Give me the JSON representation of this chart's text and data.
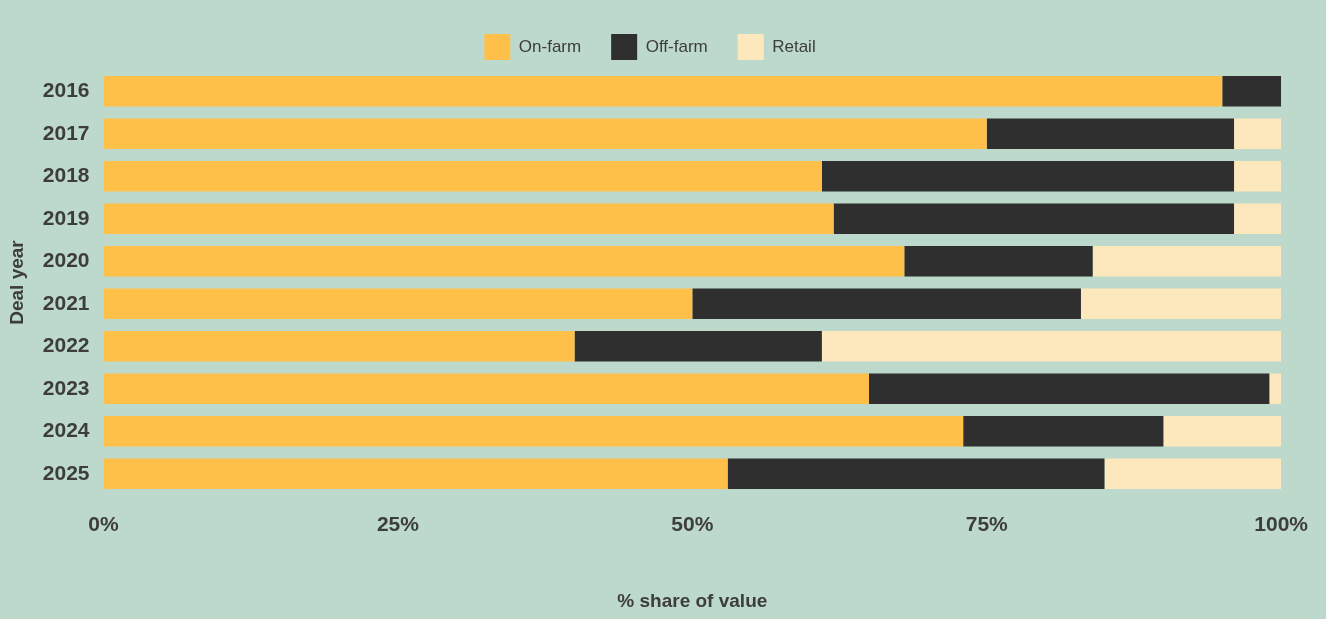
{
  "chart_data": {
    "type": "bar",
    "orientation": "horizontal",
    "stacked": true,
    "xlabel": "% share of value",
    "ylabel": "Deal year",
    "categories": [
      "2016",
      "2017",
      "2018",
      "2019",
      "2020",
      "2021",
      "2022",
      "2023",
      "2024",
      "2025"
    ],
    "series": [
      {
        "name": "On-farm",
        "color": "#ffc04a",
        "values": [
          95,
          75,
          61,
          62,
          68,
          50,
          40,
          65,
          73,
          53
        ]
      },
      {
        "name": "Off-farm",
        "color": "#2f2f2f",
        "values": [
          5,
          21,
          35,
          34,
          16,
          33,
          21,
          34,
          17,
          32
        ]
      },
      {
        "name": "Retail",
        "color": "#fde8bd",
        "values": [
          0,
          4,
          4,
          4,
          16,
          17,
          39,
          1,
          10,
          15
        ]
      }
    ],
    "xlim": [
      0,
      100
    ],
    "xticks": [
      {
        "value": 0,
        "label": "0%"
      },
      {
        "value": 25,
        "label": "25%"
      },
      {
        "value": 50,
        "label": "50%"
      },
      {
        "value": 75,
        "label": "75%"
      },
      {
        "value": 100,
        "label": "100%"
      }
    ],
    "grid": false,
    "legend": "top"
  }
}
